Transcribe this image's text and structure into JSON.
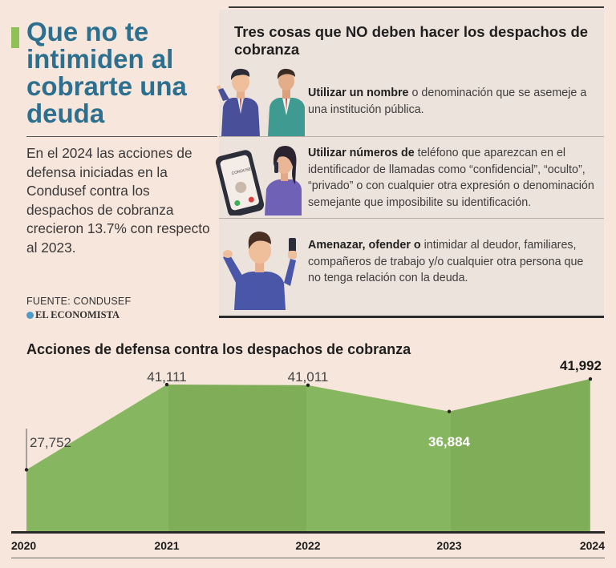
{
  "header": {
    "title": "Que no te intimiden al cobrarte una deuda",
    "lede": "En el 2024 las acciones de defensa iniciadas en la Condusef contra los despachos de cobranza crecieron 13.7% con respecto al 2023.",
    "source": "FUENTE: CONDUSEF",
    "brand": "EL ECONOMISTA"
  },
  "panel": {
    "title": "Tres cosas que NO deben hacer los despachos de cobranza",
    "items": [
      {
        "bold": "Utilizar un nombre",
        "text": " o denominación que se asemeje a una institución pública."
      },
      {
        "bold": "Utilizar números de",
        "text": " teléfono que aparezcan en el identificador de llamadas como “confidencial”, “oculto”, “privado” o con cualquier otra expresión o denominación semejante que imposibilite su identificación."
      },
      {
        "bold": "Amenazar, ofender o",
        "text": " intimidar al deudor, familiares, compañeros de trabajo y/o cualquier otra persona que no tenga relación con la deuda."
      }
    ],
    "phone_screen_text": "CONDUSEF"
  },
  "chart_data": {
    "type": "area",
    "title": "Acciones de defensa contra los despachos de cobranza",
    "x": [
      "2020",
      "2021",
      "2022",
      "2023",
      "2024"
    ],
    "values": [
      27752,
      41111,
      41011,
      36884,
      41992
    ],
    "value_labels": [
      "27,752",
      "41,111",
      "41,011",
      "36,884",
      "41,992"
    ],
    "xlabel": "",
    "ylabel": "",
    "grid": false,
    "colors": {
      "fill": "#87b660",
      "fill_dark": "#6f9d4b",
      "axis": "#2a2a2a"
    }
  }
}
